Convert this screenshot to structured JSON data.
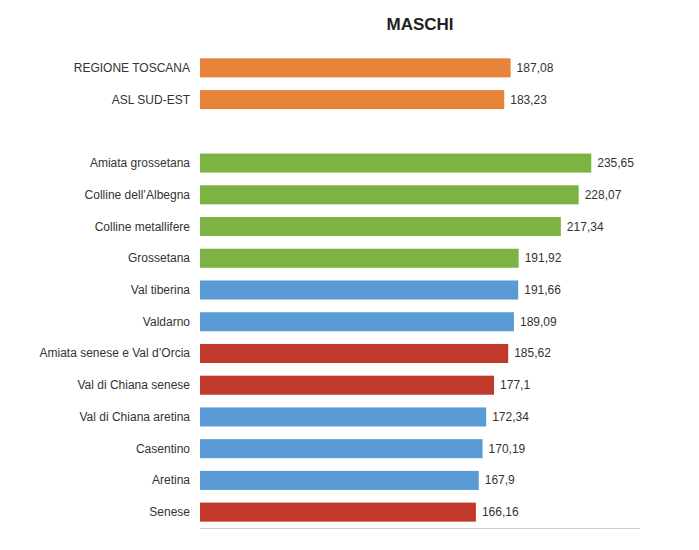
{
  "chart_data": {
    "type": "bar",
    "orientation": "horizontal",
    "title": "MASCHI",
    "categories": [
      "REGIONE TOSCANA",
      "ASL SUD-EST",
      null,
      "Amiata grossetana",
      "Colline dell’Albegna",
      "Colline metallifere",
      "Grossetana",
      "Val tiberina",
      "Valdarno",
      "Amiata senese e Val d’Orcia",
      "Val di Chiana senese",
      "Val di Chiana aretina",
      "Casentino",
      "Aretina",
      "Senese"
    ],
    "values": [
      187.08,
      183.23,
      null,
      235.65,
      228.07,
      217.34,
      191.92,
      191.66,
      189.09,
      185.62,
      177.1,
      172.34,
      170.19,
      167.9,
      166.16
    ],
    "value_labels": [
      "187,08",
      "183,23",
      null,
      "235,65",
      "228,07",
      "217,34",
      "191,92",
      "191,66",
      "189,09",
      "185,62",
      "177,1",
      "172,34",
      "170,19",
      "167,9",
      "166,16"
    ],
    "colors": [
      "#E8833A",
      "#E8833A",
      null,
      "#7CB342",
      "#7CB342",
      "#7CB342",
      "#7CB342",
      "#5B9BD5",
      "#5B9BD5",
      "#C0392B",
      "#C0392B",
      "#5B9BD5",
      "#5B9BD5",
      "#5B9BD5",
      "#C0392B"
    ],
    "xlim": [
      0,
      265
    ],
    "data_labels": true,
    "tick_labels": "y",
    "grid": false
  }
}
